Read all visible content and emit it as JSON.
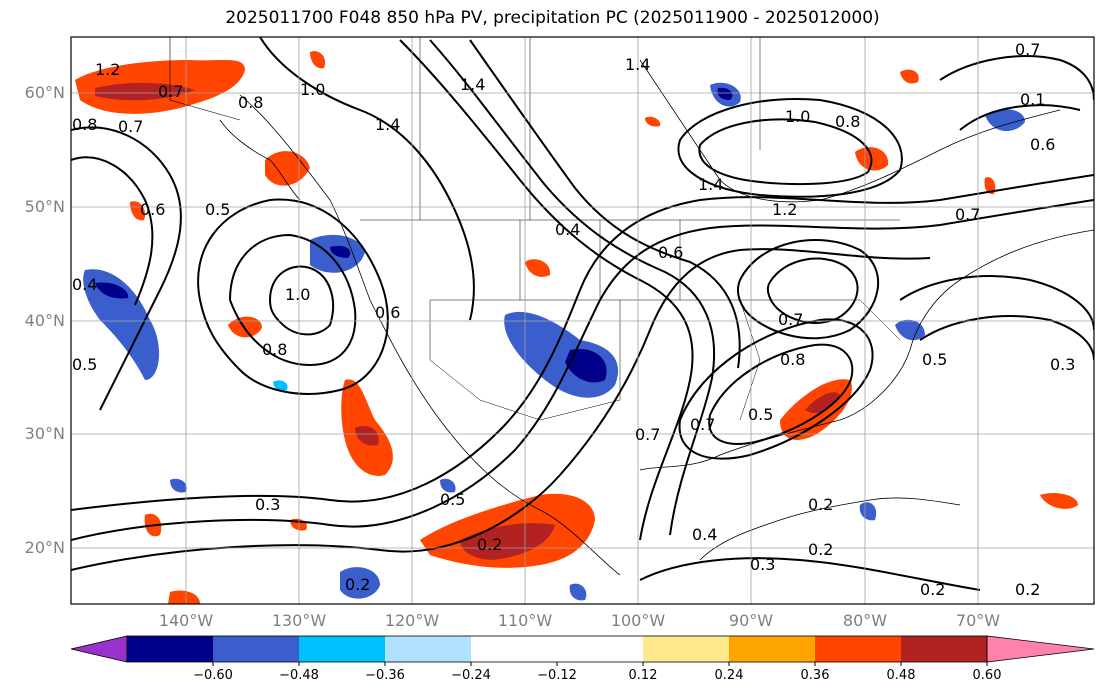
{
  "title": "2025011700 F048 850 hPa PV, precipitation PC (2025011900 - 2025012000)",
  "lat_labels": [
    "60°N",
    "50°N",
    "40°N",
    "30°N",
    "20°N"
  ],
  "lon_labels": [
    "140°W",
    "130°W",
    "120°W",
    "110°W",
    "100°W",
    "90°W",
    "80°W",
    "70°W"
  ],
  "colorbar": {
    "ticks": [
      "−0.60",
      "−0.48",
      "−0.36",
      "−0.24",
      "−0.12",
      "0.12",
      "0.24",
      "0.36",
      "0.48",
      "0.60"
    ],
    "colors": [
      "#9932cc",
      "#00008b",
      "#3a5fcd",
      "#00bfff",
      "#b0e2ff",
      "#ffffff",
      "#ffe98c",
      "#ffa500",
      "#ff4500",
      "#b22222",
      "#ff82ab"
    ]
  },
  "contour_labels": [
    "1.2",
    "0.7",
    "0.8",
    "0.7",
    "1.0",
    "1.4",
    "1.4",
    "1.4",
    "1.0",
    "0.8",
    "0.7",
    "0.1",
    "0.6",
    "1.4",
    "1.2",
    "0.4",
    "0.6",
    "0.7",
    "0.6",
    "0.5",
    "0.4",
    "1.0",
    "0.8",
    "0.6",
    "0.7",
    "0.8",
    "0.5",
    "0.7",
    "0.5",
    "0.3",
    "0.3",
    "0.2",
    "0.2",
    "0.4",
    "0.2",
    "0.2",
    "0.3",
    "0.2",
    "0.2",
    "0.5",
    "0.8",
    "0.7",
    "0.5"
  ],
  "map_legend_colors": {
    "contour": "#000000",
    "graticule": "#a0a0a0",
    "frame": "#000000"
  }
}
